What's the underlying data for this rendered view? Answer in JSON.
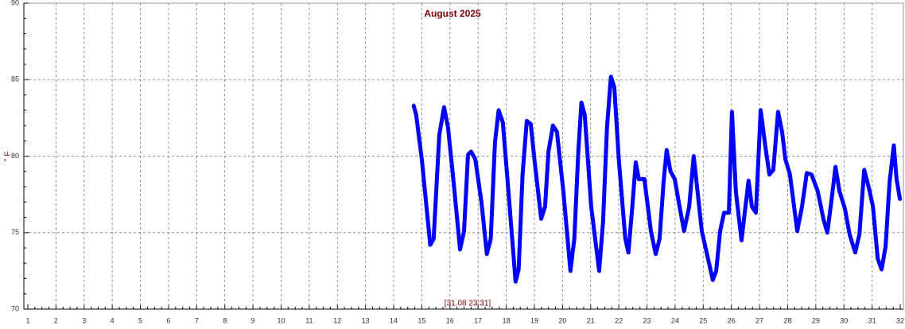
{
  "chart_data": {
    "type": "line",
    "title": "August 2025",
    "ylabel": "° F",
    "annotation": "[31.08 23:31]",
    "color": "#0000ff",
    "grid": true,
    "xlim": [
      1,
      32
    ],
    "xticks": [
      1,
      2,
      3,
      4,
      5,
      6,
      7,
      8,
      9,
      10,
      11,
      12,
      13,
      14,
      15,
      16,
      17,
      18,
      19,
      20,
      21,
      22,
      23,
      24,
      25,
      26,
      27,
      28,
      29,
      30,
      31,
      32
    ],
    "ylim": [
      70,
      90
    ],
    "yticks": [
      70,
      75,
      80,
      85,
      90
    ],
    "x": [
      14.71,
      14.8,
      15.0,
      15.3,
      15.42,
      15.62,
      15.79,
      15.93,
      16.13,
      16.36,
      16.5,
      16.64,
      16.75,
      16.9,
      17.12,
      17.31,
      17.45,
      17.6,
      17.73,
      17.88,
      18.1,
      18.33,
      18.44,
      18.58,
      18.73,
      18.87,
      19.0,
      19.24,
      19.38,
      19.5,
      19.66,
      19.8,
      20.03,
      20.28,
      20.42,
      20.56,
      20.67,
      20.79,
      21.02,
      21.3,
      21.44,
      21.58,
      21.72,
      21.84,
      22.0,
      22.23,
      22.34,
      22.48,
      22.6,
      22.71,
      22.91,
      23.14,
      23.31,
      23.45,
      23.59,
      23.7,
      23.84,
      23.99,
      24.13,
      24.32,
      24.5,
      24.66,
      24.78,
      24.95,
      25.17,
      25.34,
      25.46,
      25.6,
      25.74,
      25.91,
      26.02,
      26.16,
      26.36,
      26.5,
      26.61,
      26.73,
      26.87,
      27.04,
      27.21,
      27.35,
      27.49,
      27.66,
      27.8,
      27.92,
      28.08,
      28.34,
      28.51,
      28.68,
      28.85,
      29.07,
      29.27,
      29.41,
      29.55,
      29.7,
      29.84,
      30.03,
      30.2,
      30.4,
      30.55,
      30.72,
      30.89,
      31.03,
      31.2,
      31.34,
      31.48,
      31.62,
      31.77,
      31.87,
      31.99
    ],
    "values": [
      83.3,
      82.7,
      79.8,
      74.2,
      74.6,
      81.4,
      83.2,
      81.9,
      78.3,
      73.9,
      75.1,
      80.1,
      80.3,
      79.8,
      77.0,
      73.6,
      74.6,
      80.9,
      83.0,
      82.2,
      77.2,
      71.8,
      72.6,
      78.8,
      82.3,
      82.1,
      79.8,
      75.9,
      76.7,
      80.3,
      82.0,
      81.6,
      77.7,
      72.5,
      74.6,
      80.3,
      83.5,
      82.7,
      76.7,
      72.5,
      75.7,
      81.9,
      85.2,
      84.5,
      79.8,
      74.6,
      73.7,
      76.7,
      79.6,
      78.5,
      78.5,
      75.1,
      73.6,
      74.6,
      78.3,
      80.4,
      79.0,
      78.5,
      77.0,
      75.1,
      76.7,
      80.0,
      78.0,
      75.1,
      73.3,
      71.9,
      72.5,
      75.1,
      76.3,
      76.3,
      82.9,
      77.7,
      74.5,
      76.7,
      78.4,
      76.7,
      76.3,
      83.0,
      80.6,
      78.8,
      79.1,
      82.9,
      81.6,
      79.8,
      78.8,
      75.1,
      76.7,
      78.9,
      78.8,
      77.7,
      75.9,
      75.0,
      77.0,
      79.3,
      77.7,
      76.6,
      74.9,
      73.7,
      74.9,
      79.1,
      77.9,
      76.7,
      73.3,
      72.6,
      74.1,
      78.3,
      80.7,
      78.5,
      77.2
    ]
  }
}
